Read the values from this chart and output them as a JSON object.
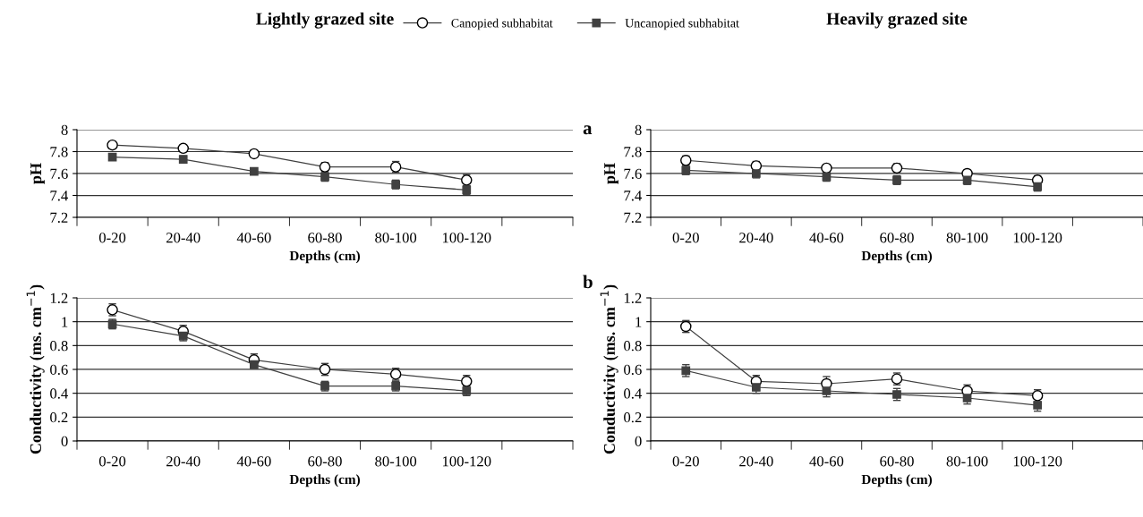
{
  "chart_data": [
    {
      "type": "line",
      "title": "Lightly grazed site",
      "xlabel": "Depths (cm)",
      "ylabel": "pH",
      "categories": [
        "0-20",
        "20-40",
        "40-60",
        "60-80",
        "80-100",
        "100-120",
        null
      ],
      "ylim": [
        7.2,
        8
      ],
      "yticks": [
        7.2,
        7.4,
        7.6,
        7.8,
        8
      ],
      "grid": "y",
      "legend": "top",
      "annotations": [
        "a"
      ],
      "series": [
        {
          "name": "Canopied subhabitat",
          "color": "#404040",
          "marker": "circle",
          "values": [
            7.86,
            7.83,
            7.78,
            7.66,
            7.66,
            7.54,
            null
          ],
          "errors": [
            0.03,
            0.03,
            0.03,
            0.04,
            0.05,
            0.05,
            null
          ]
        },
        {
          "name": "Uncanopied subhabitat",
          "color": "#404040",
          "marker": "square",
          "values": [
            7.75,
            7.73,
            7.62,
            7.57,
            7.5,
            7.45,
            null
          ],
          "errors": [
            0.03,
            0.03,
            0.03,
            0.04,
            0.04,
            0.04,
            null
          ]
        }
      ]
    },
    {
      "type": "line",
      "title": "Heavily grazed site",
      "xlabel": "Depths (cm)",
      "ylabel": "pH",
      "categories": [
        "0-20",
        "20-40",
        "40-60",
        "60-80",
        "80-100",
        "100-120",
        null
      ],
      "ylim": [
        7.2,
        8
      ],
      "yticks": [
        7.2,
        7.4,
        7.6,
        7.8,
        8
      ],
      "grid": "y",
      "series": [
        {
          "color": "#404040",
          "marker": "circle",
          "values": [
            7.72,
            7.67,
            7.65,
            7.65,
            7.6,
            7.54,
            null
          ],
          "errors": [
            0.04,
            0.04,
            0.03,
            0.04,
            0.03,
            0.04,
            null
          ]
        },
        {
          "color": "#404040",
          "marker": "square",
          "values": [
            7.63,
            7.6,
            7.57,
            7.54,
            7.54,
            7.48,
            null
          ],
          "errors": [
            0.04,
            0.04,
            0.04,
            0.04,
            0.04,
            0.04,
            null
          ]
        }
      ]
    },
    {
      "type": "line",
      "xlabel": "Depths (cm)",
      "ylabel": "Conductivity (ms. cm$^{−1}$)",
      "categories": [
        "0-20",
        "20-40",
        "40-60",
        "60-80",
        "80-100",
        "100-120",
        null
      ],
      "ylim": [
        0,
        1.2
      ],
      "yticks": [
        0,
        0.2,
        0.4,
        0.6,
        0.8,
        1,
        1.2
      ],
      "grid": "y",
      "annotations": [
        "b"
      ],
      "series": [
        {
          "color": "#404040",
          "marker": "circle",
          "values": [
            1.1,
            0.92,
            0.68,
            0.6,
            0.56,
            0.5,
            null
          ],
          "errors": [
            0.05,
            0.05,
            0.05,
            0.05,
            0.05,
            0.05,
            null
          ]
        },
        {
          "color": "#404040",
          "marker": "square",
          "values": [
            0.98,
            0.88,
            0.64,
            0.46,
            0.46,
            0.42,
            null
          ],
          "errors": [
            0.04,
            0.04,
            0.03,
            0.04,
            0.04,
            0.04,
            null
          ]
        }
      ]
    },
    {
      "type": "line",
      "xlabel": "Depths (cm)",
      "ylabel": "Conductivity (ms. cm$^{−1}$)",
      "categories": [
        "0-20",
        "20-40",
        "40-60",
        "60-80",
        "80-100",
        "100-120",
        null
      ],
      "ylim": [
        0,
        1.2
      ],
      "yticks": [
        0,
        0.2,
        0.4,
        0.6,
        0.8,
        1,
        1.2
      ],
      "grid": "y",
      "series": [
        {
          "color": "#404040",
          "marker": "circle",
          "values": [
            0.96,
            0.5,
            0.48,
            0.52,
            0.42,
            0.38,
            null
          ],
          "errors": [
            0.05,
            0.05,
            0.06,
            0.05,
            0.05,
            0.05,
            null
          ]
        },
        {
          "color": "#404040",
          "marker": "square",
          "values": [
            0.59,
            0.45,
            0.42,
            0.39,
            0.36,
            0.3,
            null
          ],
          "errors": [
            0.05,
            0.05,
            0.05,
            0.05,
            0.05,
            0.05,
            null
          ]
        }
      ]
    }
  ]
}
